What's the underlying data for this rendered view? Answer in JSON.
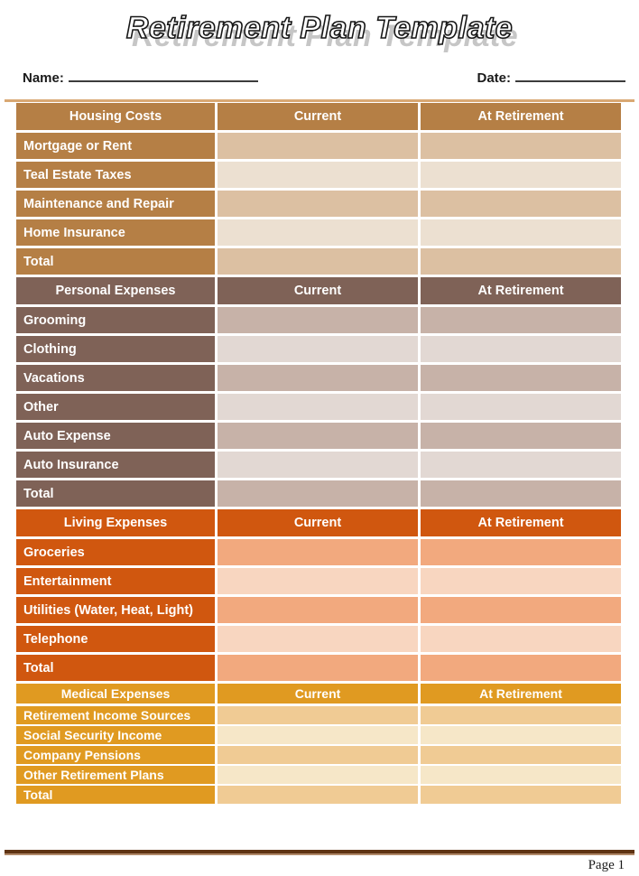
{
  "page": {
    "title": "Retirement Plan Template",
    "page_label": "Page 1"
  },
  "form": {
    "name_label": "Name:",
    "date_label": "Date:"
  },
  "table": {
    "value_columns": [
      "Current",
      "At Retirement"
    ],
    "sections": [
      {
        "title": "Housing Costs",
        "colors": {
          "header": "#b57f45",
          "row_dark": "#dcc0a2",
          "row_light": "#ece0d1"
        },
        "rows": [
          "Mortgage or Rent",
          "Teal Estate Taxes",
          "Maintenance and Repair",
          "Home Insurance",
          "Total"
        ]
      },
      {
        "title": "Personal Expenses",
        "colors": {
          "header": "#7f6257",
          "row_dark": "#c7b2a8",
          "row_light": "#e2d8d3"
        },
        "rows": [
          "Grooming",
          "Clothing",
          "Vacations",
          "Other",
          "Auto Expense",
          "Auto Insurance",
          "Total"
        ]
      },
      {
        "title": "Living Expenses",
        "colors": {
          "header": "#d0570f",
          "row_dark": "#f2a97e",
          "row_light": "#f8d6c0"
        },
        "rows": [
          "Groceries",
          "Entertainment",
          "Utilities (Water, Heat, Light)",
          "Telephone",
          "Total"
        ]
      },
      {
        "title": "Medical Expenses",
        "compact": true,
        "colors": {
          "header": "#e09a21",
          "row_dark": "#f0cb94",
          "row_light": "#f6e7c8"
        },
        "rows": [
          "Retirement Income Sources",
          "Social Security Income",
          "Company Pensions",
          "Other Retirement Plans",
          "Total"
        ]
      }
    ]
  },
  "rules": {
    "top_rule_color": "#d9a873",
    "footer_rule_dark": "#5f3413",
    "footer_rule_light": "#b08969"
  }
}
